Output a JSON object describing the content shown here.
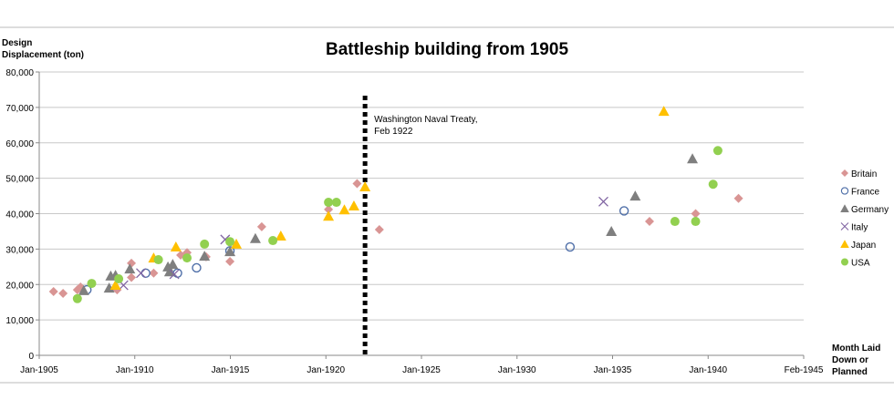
{
  "chart_data": {
    "type": "scatter",
    "title": "Battleship building from 1905",
    "ylabel_lines": [
      "Design",
      "Displacement (ton)"
    ],
    "xlabel_lines": [
      "Month Laid",
      "Down or",
      "Planned"
    ],
    "xlim": [
      "1905-01",
      "1945-02"
    ],
    "ylim": [
      0,
      80000
    ],
    "x_ticks": [
      "Jan-1905",
      "Jan-1910",
      "Jan-1915",
      "Jan-1920",
      "Jan-1925",
      "Jan-1930",
      "Jan-1935",
      "Jan-1940",
      "Feb-1945"
    ],
    "y_ticks": [
      "0",
      "10,000",
      "20,000",
      "30,000",
      "40,000",
      "50,000",
      "60,000",
      "70,000",
      "80,000"
    ],
    "grid": "horizontal",
    "legend_position": "right",
    "annotation": {
      "lines": [
        "Washington Naval Treaty,",
        "Feb 1922"
      ],
      "x": "1922-02"
    },
    "series": [
      {
        "name": "Britain",
        "marker": "diamond",
        "color": "#d99594",
        "points": [
          [
            "1905-10",
            18000
          ],
          [
            "1906-04",
            17500
          ],
          [
            "1907-01",
            18500
          ],
          [
            "1907-03",
            19300
          ],
          [
            "1909-02",
            18500
          ],
          [
            "1909-11",
            22000
          ],
          [
            "1909-11",
            26000
          ],
          [
            "1911-01",
            23200
          ],
          [
            "1912-06",
            28300
          ],
          [
            "1912-10",
            29000
          ],
          [
            "1913-10",
            27800
          ],
          [
            "1915-01",
            26500
          ],
          [
            "1916-09",
            36300
          ],
          [
            "1920-03",
            41200
          ],
          [
            "1921-09",
            48500
          ],
          [
            "1922-11",
            35500
          ],
          [
            "1937-01",
            37800
          ],
          [
            "1939-06",
            40000
          ],
          [
            "1941-09",
            44300
          ]
        ]
      },
      {
        "name": "France",
        "marker": "circle-open",
        "color": "#4f6fa8",
        "points": [
          [
            "1907-07",
            18500
          ],
          [
            "1910-08",
            23200
          ],
          [
            "1912-04",
            23200
          ],
          [
            "1913-04",
            24700
          ],
          [
            "1915-01",
            29500
          ],
          [
            "1932-11",
            30600
          ],
          [
            "1935-09",
            40800
          ]
        ]
      },
      {
        "name": "Germany",
        "marker": "triangle",
        "color": "#7f7f7f",
        "points": [
          [
            "1907-05",
            18300
          ],
          [
            "1908-09",
            19000
          ],
          [
            "1908-10",
            22400
          ],
          [
            "1909-01",
            22600
          ],
          [
            "1909-10",
            24400
          ],
          [
            "1911-10",
            25000
          ],
          [
            "1912-01",
            25700
          ],
          [
            "1911-11",
            23600
          ],
          [
            "1913-09",
            28000
          ],
          [
            "1915-01",
            29300
          ],
          [
            "1916-05",
            33000
          ],
          [
            "1935-01",
            35000
          ],
          [
            "1936-04",
            45000
          ],
          [
            "1939-04",
            55500
          ]
        ]
      },
      {
        "name": "Italy",
        "marker": "x",
        "color": "#8064a2",
        "points": [
          [
            "1909-06",
            19800
          ],
          [
            "1910-05",
            23200
          ],
          [
            "1912-02",
            22900
          ],
          [
            "1914-10",
            32700
          ],
          [
            "1934-08",
            43400
          ]
        ]
      },
      {
        "name": "Japan",
        "marker": "triangle",
        "color": "#ffc000",
        "points": [
          [
            "1909-01",
            19800
          ],
          [
            "1911-01",
            27500
          ],
          [
            "1912-03",
            30600
          ],
          [
            "1915-05",
            31400
          ],
          [
            "1917-09",
            33700
          ],
          [
            "1920-03",
            39300
          ],
          [
            "1921-01",
            41100
          ],
          [
            "1921-07",
            42200
          ],
          [
            "1922-02",
            47600
          ],
          [
            "1937-10",
            68900
          ]
        ]
      },
      {
        "name": "USA",
        "marker": "circle",
        "color": "#92d050",
        "points": [
          [
            "1907-01",
            16000
          ],
          [
            "1907-10",
            20300
          ],
          [
            "1909-03",
            21600
          ],
          [
            "1911-04",
            27000
          ],
          [
            "1912-10",
            27500
          ],
          [
            "1913-09",
            31400
          ],
          [
            "1915-01",
            32100
          ],
          [
            "1917-04",
            32400
          ],
          [
            "1920-03",
            43200
          ],
          [
            "1920-08",
            43200
          ],
          [
            "1938-05",
            37800
          ],
          [
            "1939-06",
            37800
          ],
          [
            "1940-05",
            48300
          ],
          [
            "1940-08",
            57800
          ]
        ]
      }
    ]
  }
}
